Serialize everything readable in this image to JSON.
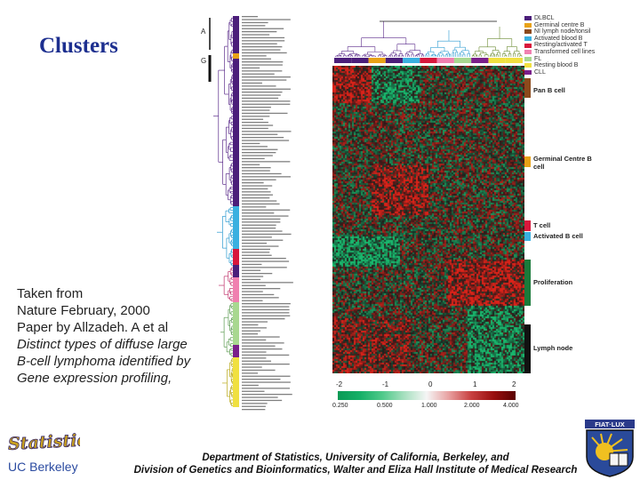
{
  "title": "Clusters",
  "caption": {
    "lines": [
      "Taken from",
      "Nature February, 2000",
      "Paper by Allzadeh. A et al",
      "Distinct types of diffuse large",
      "B-cell lymphoma identified by",
      "Gene expression profiling,"
    ]
  },
  "figure": {
    "cluster_markers": [
      "A",
      "G"
    ],
    "legend": [
      {
        "label": "DLBCL",
        "color": "#4b1e7a"
      },
      {
        "label": "Germinal centre B",
        "color": "#e8a217"
      },
      {
        "label": "NI lymph node/tonsil",
        "color": "#8c4a1c"
      },
      {
        "label": "Activated blood B",
        "color": "#3ab0e0"
      },
      {
        "label": "Resting/activated T",
        "color": "#d8183c"
      },
      {
        "label": "Transformed cell lines",
        "color": "#f080b0"
      },
      {
        "label": "FL",
        "color": "#a8d890"
      },
      {
        "label": "Resting blood B",
        "color": "#f0e040"
      },
      {
        "label": "CLL",
        "color": "#7a1f8a"
      }
    ],
    "signatures": [
      {
        "label": "Pan B cell",
        "color": "#8c4a1c"
      },
      {
        "label": "Germinal Centre B cell",
        "color": "#e8a217"
      },
      {
        "label": "T cell",
        "color": "#d8183c"
      },
      {
        "label": "Activated B cell",
        "color": "#3ab0e0"
      },
      {
        "label": "Proliferation",
        "color": "#1a7a3a"
      },
      {
        "label": "Lymph node",
        "color": "#111111"
      }
    ],
    "scale_ticks": [
      "-2",
      "-1",
      "0",
      "1",
      "2"
    ],
    "scale_values": [
      "0.250",
      "0.500",
      "1.000",
      "2.000",
      "4.000"
    ]
  },
  "footer": {
    "line1": "Department of Statistics, University of California, Berkeley, and",
    "line2": "Division of Genetics and Bioinformatics, Walter and Eliza Hall Institute of Medical Research"
  },
  "logos": {
    "statistics_text": "Statistics",
    "berkeley_text": "UC Berkeley",
    "fiat_text": "FIAT·LUX"
  }
}
